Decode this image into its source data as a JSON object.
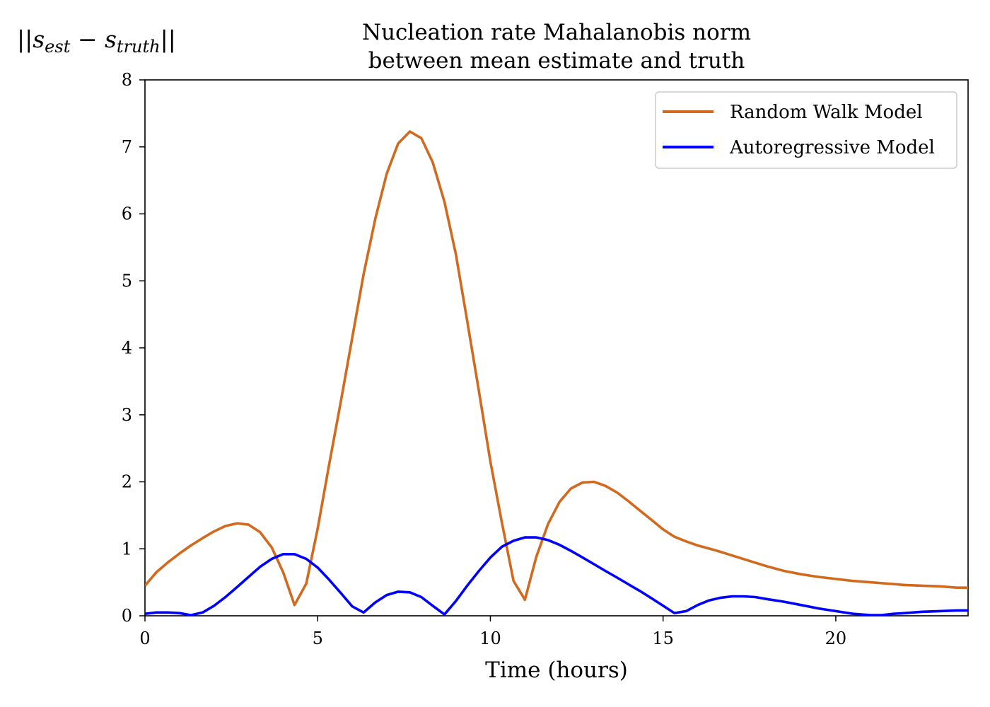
{
  "chart_data": {
    "type": "line",
    "title_line1": "Nucleation rate Mahalanobis norm",
    "title_line2": "between mean estimate and truth",
    "xlabel": "Time (hours)",
    "ylabel": "||s_est − s_truth||",
    "xlim": [
      0,
      23.83
    ],
    "ylim": [
      0,
      8
    ],
    "xticks": [
      0,
      5,
      10,
      15,
      20
    ],
    "yticks": [
      0,
      1,
      2,
      3,
      4,
      5,
      6,
      7,
      8
    ],
    "legend_position": "top-right",
    "grid": false,
    "series": [
      {
        "name": "Random Walk Model",
        "color": "#d2691e",
        "x": [
          0,
          0.33,
          0.67,
          1.0,
          1.33,
          1.67,
          2.0,
          2.33,
          2.67,
          3.0,
          3.33,
          3.67,
          4.0,
          4.33,
          4.67,
          5.0,
          5.33,
          5.67,
          6.0,
          6.33,
          6.67,
          7.0,
          7.33,
          7.67,
          8.0,
          8.33,
          8.67,
          9.0,
          9.33,
          9.67,
          10.0,
          10.33,
          10.67,
          11.0,
          11.33,
          11.67,
          12.0,
          12.33,
          12.67,
          13.0,
          13.33,
          13.67,
          14.0,
          14.33,
          14.67,
          15.0,
          15.33,
          15.67,
          16.0,
          16.5,
          17.0,
          17.5,
          18.0,
          18.5,
          19.0,
          19.5,
          20.0,
          20.5,
          21.0,
          21.5,
          22.0,
          22.5,
          23.0,
          23.5,
          23.83
        ],
        "y": [
          0.45,
          0.65,
          0.8,
          0.93,
          1.05,
          1.16,
          1.26,
          1.34,
          1.38,
          1.36,
          1.25,
          1.02,
          0.65,
          0.16,
          0.48,
          1.3,
          2.25,
          3.2,
          4.15,
          5.1,
          5.93,
          6.6,
          7.05,
          7.23,
          7.13,
          6.77,
          6.18,
          5.4,
          4.4,
          3.35,
          2.3,
          1.4,
          0.52,
          0.24,
          0.88,
          1.37,
          1.7,
          1.9,
          1.99,
          2.0,
          1.94,
          1.84,
          1.71,
          1.57,
          1.43,
          1.29,
          1.18,
          1.11,
          1.05,
          0.98,
          0.9,
          0.82,
          0.74,
          0.67,
          0.62,
          0.58,
          0.55,
          0.52,
          0.5,
          0.48,
          0.46,
          0.45,
          0.44,
          0.42,
          0.42
        ]
      },
      {
        "name": "Autoregressive Model",
        "color": "#0000ff",
        "x": [
          0,
          0.33,
          0.67,
          1.0,
          1.33,
          1.67,
          2.0,
          2.33,
          2.67,
          3.0,
          3.33,
          3.67,
          4.0,
          4.33,
          4.67,
          5.0,
          5.33,
          5.67,
          6.0,
          6.33,
          6.67,
          7.0,
          7.33,
          7.67,
          8.0,
          8.33,
          8.67,
          9.0,
          9.33,
          9.67,
          10.0,
          10.33,
          10.67,
          11.0,
          11.33,
          11.67,
          12.0,
          12.33,
          12.67,
          13.0,
          13.33,
          13.67,
          14.0,
          14.33,
          14.67,
          15.0,
          15.33,
          15.67,
          16.0,
          16.33,
          16.67,
          17.0,
          17.33,
          17.67,
          18.0,
          18.5,
          19.0,
          19.5,
          20.0,
          20.5,
          21.0,
          21.33,
          21.67,
          22.0,
          22.5,
          23.0,
          23.5,
          23.83
        ],
        "y": [
          0.03,
          0.05,
          0.05,
          0.04,
          0.01,
          0.05,
          0.15,
          0.28,
          0.43,
          0.58,
          0.73,
          0.85,
          0.92,
          0.92,
          0.85,
          0.72,
          0.54,
          0.34,
          0.14,
          0.05,
          0.2,
          0.31,
          0.36,
          0.35,
          0.28,
          0.15,
          0.02,
          0.22,
          0.45,
          0.67,
          0.87,
          1.03,
          1.12,
          1.17,
          1.17,
          1.13,
          1.06,
          0.97,
          0.87,
          0.77,
          0.67,
          0.57,
          0.47,
          0.37,
          0.26,
          0.15,
          0.04,
          0.07,
          0.16,
          0.23,
          0.27,
          0.29,
          0.29,
          0.28,
          0.25,
          0.21,
          0.16,
          0.11,
          0.07,
          0.03,
          0.01,
          0.01,
          0.03,
          0.04,
          0.06,
          0.07,
          0.08,
          0.08
        ]
      }
    ]
  }
}
